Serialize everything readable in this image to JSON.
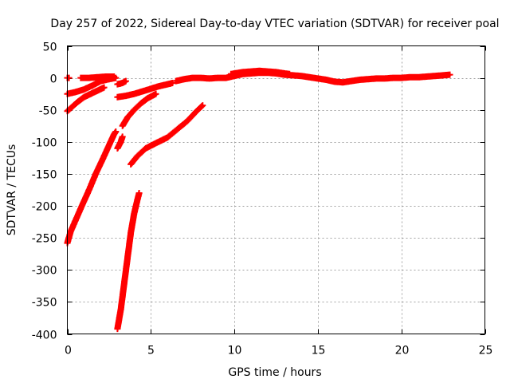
{
  "chart_data": {
    "type": "scatter",
    "title": "Day 257 of 2022, Sidereal Day-to-day VTEC variation (SDTVAR) for receiver poal",
    "xlabel": "GPS time / hours",
    "ylabel": "SDTVAR / TECUs",
    "xlim": [
      0,
      25
    ],
    "ylim": [
      -400,
      50
    ],
    "xticks": [
      0,
      5,
      10,
      15,
      20,
      25
    ],
    "yticks": [
      50,
      0,
      -50,
      -100,
      -150,
      -200,
      -250,
      -300,
      -350,
      -400
    ],
    "grid": true,
    "marker": "+",
    "series_color": "#ff0000",
    "series": [
      {
        "name": "arc-top-left",
        "points": [
          [
            0.0,
            -25
          ],
          [
            0.5,
            -22
          ],
          [
            1.0,
            -18
          ],
          [
            1.5,
            -12
          ],
          [
            2.0,
            -5
          ],
          [
            2.5,
            -2
          ],
          [
            2.9,
            0
          ]
        ]
      },
      {
        "name": "arc-top-short",
        "points": [
          [
            0.0,
            0
          ],
          [
            0.1,
            0
          ]
        ]
      },
      {
        "name": "arc-top-band",
        "points": [
          [
            0.8,
            0
          ],
          [
            1.3,
            0
          ],
          [
            1.8,
            1
          ],
          [
            2.3,
            2
          ],
          [
            2.8,
            2
          ]
        ]
      },
      {
        "name": "arc-mid-left",
        "points": [
          [
            0.0,
            -52
          ],
          [
            0.3,
            -45
          ],
          [
            0.6,
            -38
          ],
          [
            1.0,
            -30
          ],
          [
            1.4,
            -25
          ],
          [
            1.8,
            -20
          ],
          [
            2.2,
            -15
          ]
        ]
      },
      {
        "name": "arc-near-3",
        "points": [
          [
            3.0,
            -10
          ],
          [
            3.3,
            -8
          ],
          [
            3.5,
            -5
          ]
        ]
      },
      {
        "name": "arc-steep-left",
        "points": [
          [
            0.0,
            -258
          ],
          [
            0.2,
            -240
          ],
          [
            0.5,
            -222
          ],
          [
            0.9,
            -198
          ],
          [
            1.3,
            -175
          ],
          [
            1.7,
            -150
          ],
          [
            2.1,
            -128
          ],
          [
            2.5,
            -105
          ],
          [
            2.8,
            -88
          ],
          [
            2.9,
            -84
          ]
        ]
      },
      {
        "name": "arc-small-3",
        "points": [
          [
            3.0,
            -110
          ],
          [
            3.2,
            -100
          ],
          [
            3.3,
            -92
          ]
        ]
      },
      {
        "name": "arc-curve-3",
        "points": [
          [
            3.3,
            -75
          ],
          [
            3.6,
            -62
          ],
          [
            4.0,
            -50
          ],
          [
            4.4,
            -40
          ],
          [
            4.8,
            -32
          ],
          [
            5.3,
            -25
          ]
        ]
      },
      {
        "name": "arc-diag-3",
        "points": [
          [
            3.0,
            -30
          ],
          [
            3.5,
            -28
          ],
          [
            4.0,
            -25
          ],
          [
            4.5,
            -21
          ],
          [
            5.0,
            -17
          ],
          [
            5.5,
            -13
          ],
          [
            6.0,
            -10
          ],
          [
            6.3,
            -8
          ]
        ]
      },
      {
        "name": "arc-deep-3",
        "points": [
          [
            3.0,
            -392
          ],
          [
            3.2,
            -362
          ],
          [
            3.4,
            -322
          ],
          [
            3.6,
            -282
          ],
          [
            3.8,
            -242
          ],
          [
            4.0,
            -212
          ],
          [
            4.2,
            -190
          ],
          [
            4.3,
            -180
          ]
        ]
      },
      {
        "name": "arc-lower-4",
        "points": [
          [
            3.8,
            -135
          ],
          [
            4.2,
            -122
          ],
          [
            4.7,
            -110
          ],
          [
            5.3,
            -102
          ],
          [
            6.0,
            -93
          ],
          [
            6.6,
            -80
          ],
          [
            7.2,
            -67
          ],
          [
            7.7,
            -53
          ],
          [
            8.1,
            -43
          ]
        ]
      },
      {
        "name": "arc-main",
        "points": [
          [
            6.5,
            -5
          ],
          [
            7.0,
            -2
          ],
          [
            7.5,
            0
          ],
          [
            8.0,
            0
          ],
          [
            8.5,
            -1
          ],
          [
            9.0,
            0
          ],
          [
            9.5,
            0
          ],
          [
            10.0,
            3
          ],
          [
            10.5,
            6
          ],
          [
            11.0,
            7
          ],
          [
            11.5,
            8
          ],
          [
            12.0,
            8
          ],
          [
            12.5,
            7
          ],
          [
            13.0,
            5
          ],
          [
            13.5,
            4
          ],
          [
            14.0,
            3
          ],
          [
            14.5,
            1
          ],
          [
            15.0,
            -1
          ],
          [
            15.5,
            -3
          ],
          [
            16.0,
            -6
          ],
          [
            16.5,
            -7
          ],
          [
            17.0,
            -5
          ],
          [
            17.5,
            -3
          ],
          [
            18.0,
            -2
          ],
          [
            18.5,
            -1
          ],
          [
            19.0,
            -1
          ],
          [
            19.5,
            0
          ],
          [
            20.0,
            0
          ],
          [
            20.5,
            1
          ],
          [
            21.0,
            1
          ],
          [
            21.5,
            2
          ],
          [
            22.0,
            3
          ],
          [
            22.5,
            4
          ],
          [
            22.9,
            5
          ]
        ]
      },
      {
        "name": "arc-main-band",
        "points": [
          [
            9.8,
            6
          ],
          [
            10.5,
            9
          ],
          [
            11.0,
            10
          ],
          [
            11.5,
            11
          ],
          [
            12.0,
            10
          ],
          [
            12.5,
            9
          ],
          [
            13.0,
            7
          ],
          [
            13.3,
            6
          ]
        ]
      }
    ]
  }
}
